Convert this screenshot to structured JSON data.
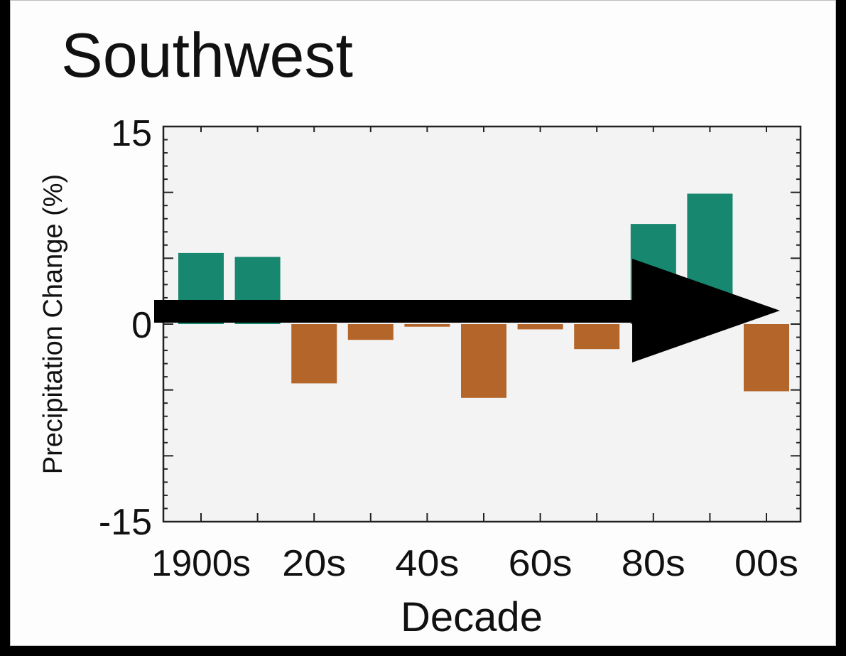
{
  "chart_data": {
    "type": "bar",
    "title": "Southwest",
    "xlabel": "Decade",
    "ylabel": "Precipitation Change (%)",
    "ylim": [
      -15,
      15
    ],
    "yticks": [
      "15",
      "0",
      "-15"
    ],
    "xtick_labels": [
      "1900s",
      "20s",
      "40s",
      "60s",
      "80s",
      "00s"
    ],
    "categories": [
      "1900s",
      "1910s",
      "1920s",
      "1930s",
      "1940s",
      "1950s",
      "1960s",
      "1970s",
      "1980s",
      "1990s",
      "2000s"
    ],
    "values": [
      5.4,
      5.1,
      -4.5,
      -1.2,
      -0.2,
      -5.6,
      -0.4,
      -1.9,
      7.6,
      9.9,
      -5.1
    ],
    "colors": {
      "positive": "#17876f",
      "negative": "#b4652a"
    },
    "plot_background": "#f3f3f3",
    "annotation": "arrow"
  }
}
